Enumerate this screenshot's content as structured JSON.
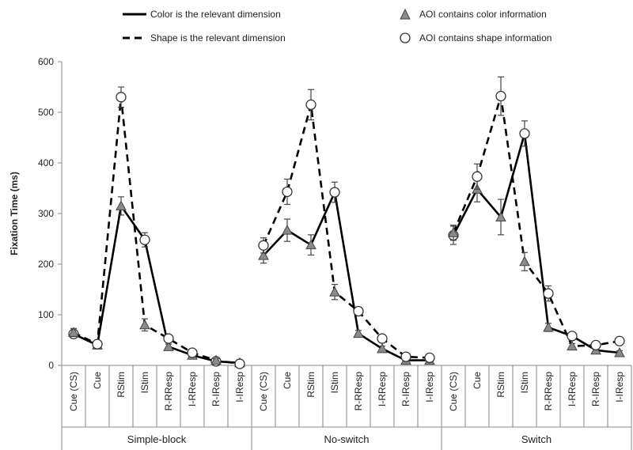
{
  "chart_data": {
    "type": "line",
    "ylabel": "Fixation Time (ms)",
    "ylim": [
      0,
      600
    ],
    "yticks": [
      0,
      100,
      200,
      300,
      400,
      500,
      600
    ],
    "grid": false,
    "legend_position": "top",
    "categories": [
      "Cue (CS)",
      "Cue",
      "RStim",
      "IStim",
      "R-RResp",
      "I-RResp",
      "R-IResp",
      "I-IResp"
    ],
    "groups": [
      "Simple-block",
      "No-switch",
      "Switch"
    ],
    "legend": {
      "solid_line": "Color is the relevant dimension",
      "dashed_line": "Shape is the relevant dimension",
      "triangle_marker": "AOI contains color information",
      "circle_marker": "AOI contains shape information"
    },
    "series": [
      {
        "line": "solid",
        "group": "Simple-block",
        "values": [
          62,
          40,
          315,
          248,
          37,
          20,
          8,
          5
        ],
        "markers": [
          "circle",
          "triangle",
          "triangle",
          "circle",
          "triangle",
          "triangle",
          "circle",
          "triangle"
        ],
        "errors": [
          8,
          5,
          18,
          14,
          5,
          4,
          3,
          2
        ]
      },
      {
        "line": "dashed",
        "group": "Simple-block",
        "values": [
          65,
          42,
          530,
          80,
          53,
          25,
          10,
          3
        ],
        "markers": [
          "triangle",
          "circle",
          "circle",
          "triangle",
          "circle",
          "circle",
          "triangle",
          "circle"
        ],
        "errors": [
          8,
          5,
          20,
          12,
          6,
          4,
          3,
          2
        ]
      },
      {
        "line": "solid",
        "group": "No-switch",
        "values": [
          217,
          267,
          238,
          342,
          63,
          33,
          10,
          10
        ],
        "markers": [
          "triangle",
          "triangle",
          "triangle",
          "circle",
          "triangle",
          "triangle",
          "triangle",
          "triangle"
        ],
        "errors": [
          15,
          22,
          20,
          20,
          6,
          5,
          3,
          3
        ]
      },
      {
        "line": "dashed",
        "group": "No-switch",
        "values": [
          237,
          343,
          515,
          145,
          107,
          53,
          17,
          15
        ],
        "markers": [
          "circle",
          "circle",
          "circle",
          "triangle",
          "circle",
          "circle",
          "circle",
          "circle"
        ],
        "errors": [
          15,
          25,
          30,
          15,
          8,
          5,
          3,
          3
        ]
      },
      {
        "line": "solid",
        "group": "Switch",
        "values": [
          257,
          348,
          293,
          458,
          75,
          58,
          30,
          25
        ],
        "markers": [
          "circle",
          "triangle",
          "triangle",
          "circle",
          "triangle",
          "circle",
          "triangle",
          "triangle"
        ],
        "errors": [
          18,
          25,
          35,
          25,
          8,
          6,
          5,
          4
        ]
      },
      {
        "line": "dashed",
        "group": "Switch",
        "values": [
          262,
          373,
          532,
          205,
          142,
          38,
          40,
          48
        ],
        "markers": [
          "triangle",
          "circle",
          "circle",
          "triangle",
          "circle",
          "triangle",
          "circle",
          "circle"
        ],
        "errors": [
          15,
          25,
          38,
          18,
          15,
          5,
          5,
          4
        ]
      }
    ]
  }
}
